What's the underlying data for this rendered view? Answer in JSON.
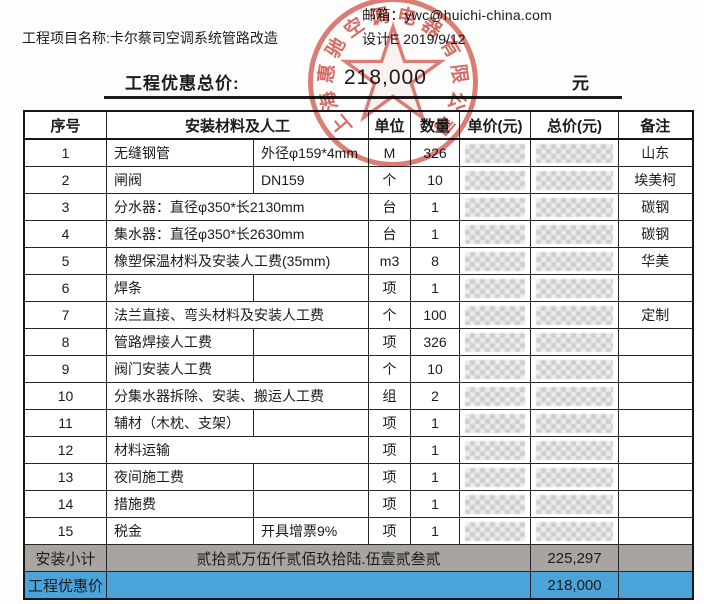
{
  "top": {
    "email_label": "邮箱：",
    "email_value": "ywc@huichi-china.com",
    "project_label": "工程项目名称:",
    "project_value": "卡尔蔡司空调系统管路改造",
    "design_label": "设计E",
    "design_date": "2019/9/12"
  },
  "total_line": {
    "label": "工程优惠总价:",
    "value": "218,000",
    "unit": "元"
  },
  "stamp": {
    "company": "上海惠驰空调电器有限公司",
    "color": "#c6342a"
  },
  "table": {
    "headers": {
      "no": "序号",
      "material": "安装材料及人工",
      "unit": "单位",
      "qty": "数量",
      "unit_price": "单价(元)",
      "total_price": "总价(元)",
      "remark": "备注"
    },
    "prices_redacted": true,
    "rows": [
      {
        "no": "1",
        "name": "无缝钢管",
        "spec": "外径φ159*4mm",
        "split": true,
        "unit": "M",
        "qty": "326",
        "remark": "山东"
      },
      {
        "no": "2",
        "name": "闸阀",
        "spec": "DN159",
        "split": true,
        "unit": "个",
        "qty": "10",
        "remark": "埃美柯"
      },
      {
        "no": "3",
        "name": "分水器：直径φ350*长2130mm",
        "spec": "",
        "split": false,
        "unit": "台",
        "qty": "1",
        "remark": "碳钢"
      },
      {
        "no": "4",
        "name": "集水器：直径φ350*长2630mm",
        "spec": "",
        "split": false,
        "unit": "台",
        "qty": "1",
        "remark": "碳钢"
      },
      {
        "no": "5",
        "name": "橡塑保温材料及安装人工费(35mm)",
        "spec": "",
        "split": false,
        "unit": "m3",
        "qty": "8",
        "remark": "华美"
      },
      {
        "no": "6",
        "name": "焊条",
        "spec": "",
        "split": true,
        "unit": "项",
        "qty": "1",
        "remark": ""
      },
      {
        "no": "7",
        "name": "法兰直接、弯头材料及安装人工费",
        "spec": "",
        "split": false,
        "unit": "个",
        "qty": "100",
        "remark": "定制"
      },
      {
        "no": "8",
        "name": "管路焊接人工费",
        "spec": "",
        "split": true,
        "unit": "项",
        "qty": "326",
        "remark": ""
      },
      {
        "no": "9",
        "name": "阀门安装人工费",
        "spec": "",
        "split": true,
        "unit": "个",
        "qty": "10",
        "remark": ""
      },
      {
        "no": "10",
        "name": "分集水器拆除、安装、搬运人工费",
        "spec": "",
        "split": false,
        "unit": "组",
        "qty": "2",
        "remark": ""
      },
      {
        "no": "11",
        "name": "辅材（木枕、支架）",
        "spec": "",
        "split": true,
        "unit": "项",
        "qty": "1",
        "remark": ""
      },
      {
        "no": "12",
        "name": "材料运输",
        "spec": "",
        "split": false,
        "unit": "项",
        "qty": "1",
        "remark": ""
      },
      {
        "no": "13",
        "name": "夜间施工费",
        "spec": "",
        "split": true,
        "unit": "项",
        "qty": "1",
        "remark": ""
      },
      {
        "no": "14",
        "name": "措施费",
        "spec": "",
        "split": true,
        "unit": "项",
        "qty": "1",
        "remark": ""
      },
      {
        "no": "15",
        "name": "税金",
        "spec": "开具增票9%",
        "split": true,
        "unit": "项",
        "qty": "1",
        "remark": ""
      }
    ],
    "subtotal": {
      "label": "安装小计",
      "amount_cn": "贰拾贰万伍仟贰佰玖拾陆.伍壹贰叁贰",
      "amount": "225,297",
      "remark": ""
    },
    "discount": {
      "label": "工程优惠价",
      "amount": "218,000",
      "remark": ""
    },
    "colors": {
      "subtotal_bg": "#a8a4a0",
      "discount_bg": "#4aa3d9",
      "border": "#1f1f1f"
    }
  }
}
